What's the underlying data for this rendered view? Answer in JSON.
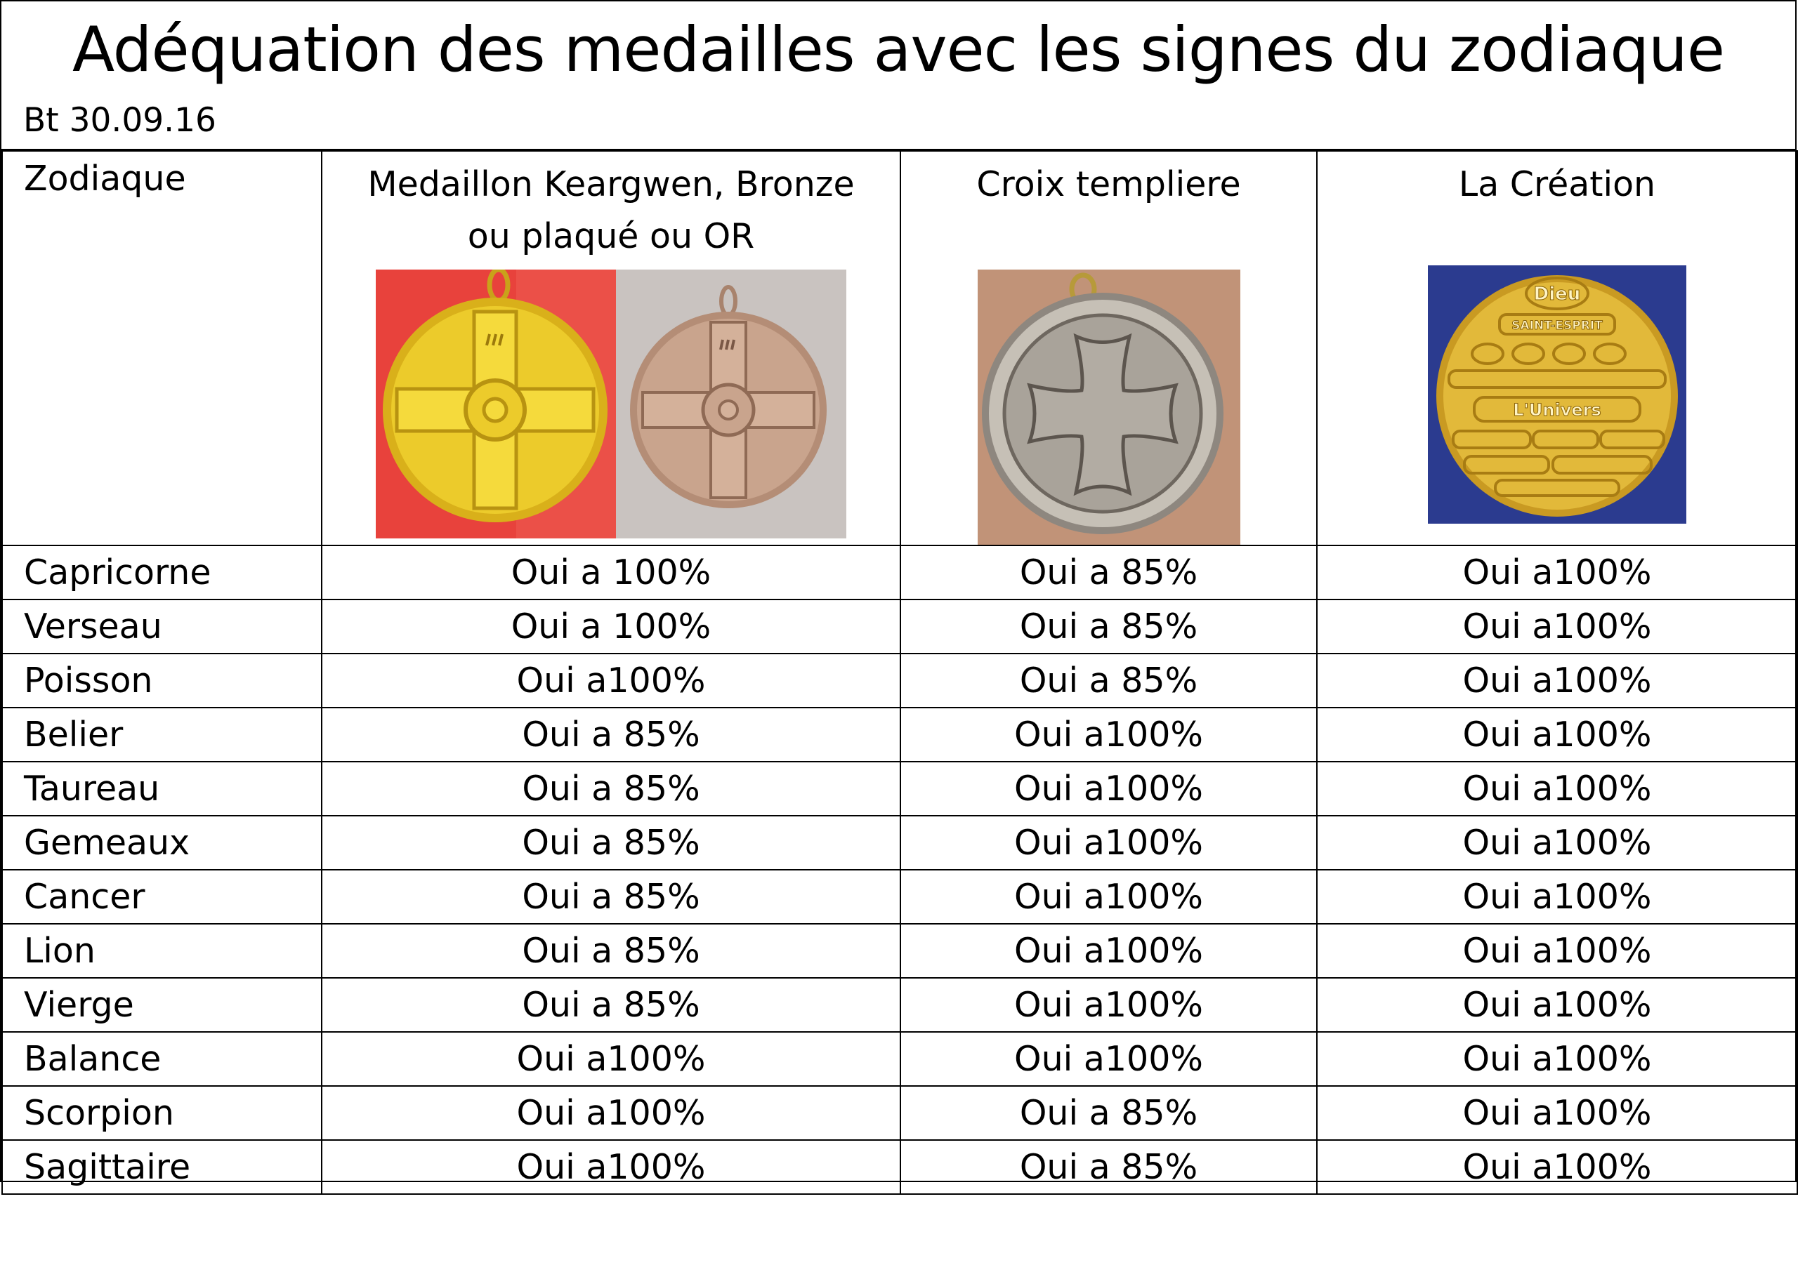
{
  "document": {
    "title": "Adéquation des medailles avec les signes du zodiaque",
    "subtitle": "Bt 30.09.16"
  },
  "table": {
    "headers": {
      "zodiac": "Zodiaque",
      "keargwen": "Medaillon Keargwen, Bronze ou plaqué ou OR",
      "templar": "Croix templiere",
      "creation": "La Création"
    },
    "medal_images": {
      "keargwen_gold": {
        "icon": "gold-medallion-celtic-cross-icon",
        "background": "#e8423c",
        "metal": "#e7c21f"
      },
      "keargwen_bronze": {
        "icon": "bronze-medallion-celtic-cross-icon",
        "background": "#c9c3c0",
        "metal": "#c59e88"
      },
      "templar": {
        "icon": "silver-templar-cross-medal-icon",
        "background": "#c69a7f",
        "metal": "#a9a39a"
      },
      "creation": {
        "icon": "gold-creation-medal-icon",
        "background": "#2b3b8f",
        "metal": "#e2b93a",
        "text": [
          "Dieu",
          "SAINT-ESPRIT",
          "L'Univers"
        ]
      }
    },
    "rows": [
      {
        "sign": "Capricorne",
        "keargwen": "Oui a 100%",
        "templar": "Oui a 85%",
        "creation": "Oui a100%"
      },
      {
        "sign": "Verseau",
        "keargwen": "Oui a 100%",
        "templar": "Oui a 85%",
        "creation": "Oui a100%"
      },
      {
        "sign": "Poisson",
        "keargwen": "Oui a100%",
        "templar": "Oui a 85%",
        "creation": "Oui a100%"
      },
      {
        "sign": "Belier",
        "keargwen": "Oui a 85%",
        "templar": "Oui a100%",
        "creation": "Oui a100%"
      },
      {
        "sign": "Taureau",
        "keargwen": "Oui a 85%",
        "templar": "Oui a100%",
        "creation": "Oui a100%"
      },
      {
        "sign": "Gemeaux",
        "keargwen": "Oui a 85%",
        "templar": "Oui a100%",
        "creation": "Oui a100%"
      },
      {
        "sign": "Cancer",
        "keargwen": "Oui a 85%",
        "templar": "Oui a100%",
        "creation": "Oui a100%"
      },
      {
        "sign": "Lion",
        "keargwen": "Oui a 85%",
        "templar": "Oui a100%",
        "creation": "Oui a100%"
      },
      {
        "sign": "Vierge",
        "keargwen": "Oui a 85%",
        "templar": "Oui a100%",
        "creation": "Oui a100%"
      },
      {
        "sign": "Balance",
        "keargwen": "Oui a100%",
        "templar": "Oui a100%",
        "creation": "Oui a100%"
      },
      {
        "sign": "Scorpion",
        "keargwen": "Oui a100%",
        "templar": "Oui a 85%",
        "creation": "Oui a100%"
      },
      {
        "sign": "Sagittaire",
        "keargwen": "Oui a100%",
        "templar": "Oui a 85%",
        "creation": "Oui a100%"
      }
    ]
  }
}
